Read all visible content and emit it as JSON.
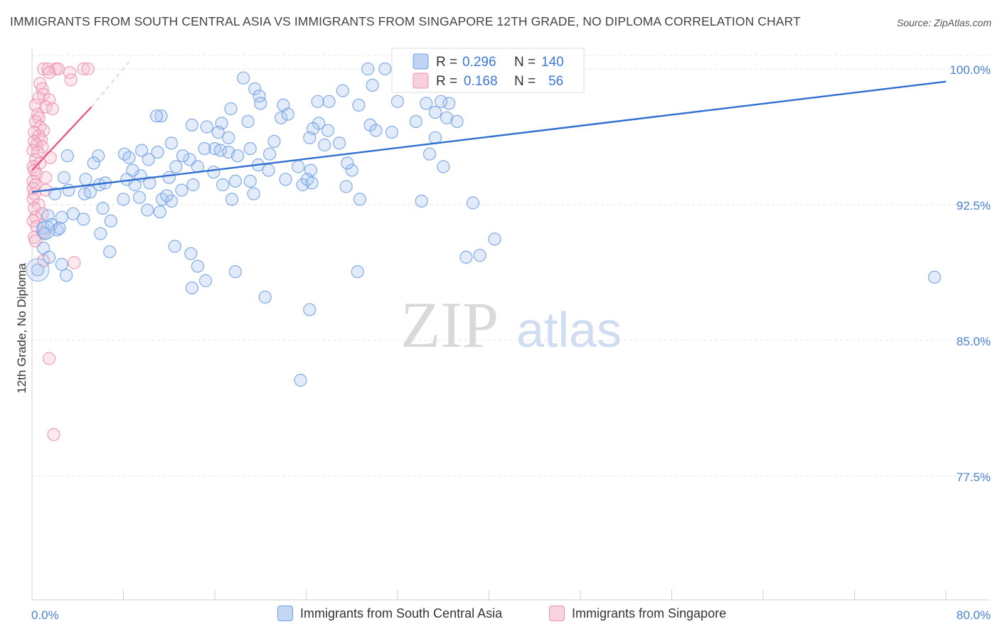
{
  "header": {
    "title": "IMMIGRANTS FROM SOUTH CENTRAL ASIA VS IMMIGRANTS FROM SINGAPORE 12TH GRADE, NO DIPLOMA CORRELATION CHART",
    "source": "Source: ZipAtlas.com"
  },
  "watermark": {
    "zip": "ZIP",
    "atlas": "atlas"
  },
  "colors": {
    "blue": "#6f9fe0",
    "blue_fill": "#a9c6f0",
    "blue_line": "#2f6fd0",
    "pink": "#ec8fae",
    "pink_fill": "#f6bfd1",
    "pink_line": "#e8598a",
    "axis_label": "#4a7fd4",
    "grid": "#e4e4e4"
  },
  "legend_top": {
    "rows": [
      {
        "r_label": "R =",
        "r_value": "0.296",
        "n_label": "N =",
        "n_value": "140",
        "series": "blue"
      },
      {
        "r_label": "R =",
        "r_value": "0.168",
        "n_label": "N =",
        "n_value": "56",
        "series": "pink"
      }
    ]
  },
  "legend_bottom": [
    {
      "label": "Immigrants from South Central Asia",
      "series": "blue"
    },
    {
      "label": "Immigrants from Singapore",
      "series": "pink"
    }
  ],
  "chart_data": {
    "type": "scatter",
    "title": "IMMIGRANTS FROM SOUTH CENTRAL ASIA VS IMMIGRANTS FROM SINGAPORE 12TH GRADE, NO DIPLOMA CORRELATION CHART",
    "xlabel": "",
    "ylabel": "12th Grade, No Diploma",
    "xlim": [
      0,
      80
    ],
    "ylim": [
      70,
      100.8
    ],
    "x_tick_labels": [
      "0.0%",
      "80.0%"
    ],
    "y_ticks": [
      77.5,
      85.0,
      92.5,
      100.0
    ],
    "y_tick_labels": [
      "77.5%",
      "85.0%",
      "92.5%",
      "100.0%"
    ],
    "grid": true,
    "legend_position": "top-center",
    "series": [
      {
        "name": "Immigrants from South Central Asia",
        "color": "blue",
        "R": 0.296,
        "N": 140,
        "trend": {
          "x": [
            0,
            80
          ],
          "y": [
            93.2,
            99.3
          ],
          "style": "solid"
        },
        "points": [
          [
            29.4,
            100.0
          ],
          [
            30.9,
            100.0
          ],
          [
            18.5,
            99.5
          ],
          [
            19.5,
            98.9
          ],
          [
            27.2,
            98.8
          ],
          [
            33.0,
            99.1
          ],
          [
            19.9,
            98.5
          ],
          [
            25.0,
            98.2
          ],
          [
            26.0,
            98.2
          ],
          [
            28.6,
            98.0
          ],
          [
            20.0,
            98.1
          ],
          [
            22.0,
            98.0
          ],
          [
            32.0,
            98.2
          ],
          [
            34.5,
            98.1
          ],
          [
            36.5,
            98.1
          ],
          [
            17.4,
            97.8
          ],
          [
            21.8,
            97.3
          ],
          [
            22.4,
            97.5
          ],
          [
            25.1,
            97.0
          ],
          [
            29.6,
            96.9
          ],
          [
            30.1,
            96.6
          ],
          [
            11.3,
            97.4
          ],
          [
            14.0,
            96.9
          ],
          [
            15.3,
            96.8
          ],
          [
            16.6,
            97.0
          ],
          [
            18.9,
            97.1
          ],
          [
            24.6,
            96.7
          ],
          [
            25.9,
            96.6
          ],
          [
            33.6,
            97.1
          ],
          [
            36.3,
            97.3
          ],
          [
            37.2,
            97.1
          ],
          [
            10.9,
            97.4
          ],
          [
            17.2,
            96.2
          ],
          [
            24.3,
            96.2
          ],
          [
            12.2,
            95.9
          ],
          [
            16.0,
            95.6
          ],
          [
            19.1,
            95.6
          ],
          [
            25.6,
            95.8
          ],
          [
            8.1,
            95.3
          ],
          [
            9.6,
            95.5
          ],
          [
            10.2,
            95.0
          ],
          [
            11.0,
            95.4
          ],
          [
            13.8,
            95.0
          ],
          [
            15.1,
            95.6
          ],
          [
            16.5,
            95.5
          ],
          [
            17.2,
            95.4
          ],
          [
            20.8,
            95.3
          ],
          [
            3.1,
            95.2
          ],
          [
            5.8,
            95.2
          ],
          [
            5.4,
            94.8
          ],
          [
            8.5,
            95.1
          ],
          [
            12.6,
            94.6
          ],
          [
            13.2,
            95.2
          ],
          [
            14.5,
            94.6
          ],
          [
            20.7,
            94.4
          ],
          [
            23.3,
            94.6
          ],
          [
            24.4,
            94.4
          ],
          [
            28.0,
            94.4
          ],
          [
            9.5,
            94.1
          ],
          [
            12.0,
            94.0
          ],
          [
            15.9,
            94.3
          ],
          [
            19.1,
            93.8
          ],
          [
            22.2,
            93.9
          ],
          [
            23.7,
            93.6
          ],
          [
            2.8,
            94.0
          ],
          [
            4.7,
            93.9
          ],
          [
            5.9,
            93.6
          ],
          [
            6.4,
            93.7
          ],
          [
            8.3,
            93.9
          ],
          [
            9.0,
            93.6
          ],
          [
            10.3,
            93.7
          ],
          [
            13.1,
            93.3
          ],
          [
            14.1,
            93.6
          ],
          [
            16.7,
            93.6
          ],
          [
            17.8,
            93.8
          ],
          [
            24.1,
            93.9
          ],
          [
            24.5,
            93.7
          ],
          [
            2.0,
            93.1
          ],
          [
            3.2,
            93.3
          ],
          [
            4.6,
            93.1
          ],
          [
            5.1,
            93.2
          ],
          [
            8.0,
            92.8
          ],
          [
            9.4,
            92.9
          ],
          [
            11.4,
            92.8
          ],
          [
            12.2,
            92.7
          ],
          [
            17.5,
            92.8
          ],
          [
            19.4,
            93.1
          ],
          [
            28.7,
            92.8
          ],
          [
            34.1,
            92.7
          ],
          [
            1.4,
            91.9
          ],
          [
            2.6,
            91.8
          ],
          [
            3.6,
            92.0
          ],
          [
            4.5,
            91.7
          ],
          [
            10.1,
            92.2
          ],
          [
            11.2,
            92.1
          ],
          [
            38.6,
            92.6
          ],
          [
            1.0,
            91.2
          ],
          [
            1.7,
            91.4
          ],
          [
            2.2,
            91.1
          ],
          [
            1.1,
            90.9
          ],
          [
            2.4,
            91.2
          ],
          [
            6.9,
            91.6
          ],
          [
            6.0,
            90.9
          ],
          [
            12.5,
            90.2
          ],
          [
            13.9,
            89.8
          ],
          [
            38.0,
            89.6
          ],
          [
            40.5,
            90.6
          ],
          [
            39.2,
            89.7
          ],
          [
            1.0,
            90.1
          ],
          [
            2.6,
            89.2
          ],
          [
            14.5,
            89.1
          ],
          [
            17.8,
            88.8
          ],
          [
            6.8,
            89.9
          ],
          [
            3.0,
            88.6
          ],
          [
            15.2,
            88.3
          ],
          [
            28.5,
            88.8
          ],
          [
            14.0,
            87.9
          ],
          [
            20.4,
            87.4
          ],
          [
            24.3,
            86.7
          ],
          [
            79.0,
            88.5
          ],
          [
            23.5,
            82.8
          ],
          [
            27.5,
            93.5
          ],
          [
            31.5,
            96.5
          ],
          [
            34.8,
            95.3
          ],
          [
            11.8,
            93.0
          ],
          [
            18.0,
            95.2
          ],
          [
            21.2,
            96.0
          ],
          [
            27.6,
            94.8
          ],
          [
            26.9,
            95.9
          ],
          [
            29.8,
            99.1
          ],
          [
            35.8,
            98.2
          ],
          [
            16.3,
            96.5
          ],
          [
            19.8,
            94.7
          ],
          [
            8.8,
            94.4
          ],
          [
            6.2,
            92.3
          ],
          [
            0.5,
            88.9
          ],
          [
            1.5,
            89.6
          ],
          [
            35.3,
            97.6
          ],
          [
            36.0,
            94.6
          ],
          [
            35.3,
            96.2
          ]
        ]
      },
      {
        "name": "Immigrants from Singapore",
        "color": "pink",
        "R": 0.168,
        "N": 56,
        "trend": {
          "x": [
            0,
            5.2
          ],
          "y": [
            94.4,
            97.9
          ],
          "style": "solid"
        },
        "trend_dashed": {
          "x": [
            5.2,
            8.5
          ],
          "y": [
            97.9,
            100.4
          ],
          "style": "dashed"
        },
        "points": [
          [
            1.0,
            100.0
          ],
          [
            1.4,
            100.0
          ],
          [
            2.1,
            100.0
          ],
          [
            2.3,
            100.0
          ],
          [
            4.5,
            100.0
          ],
          [
            4.9,
            100.0
          ],
          [
            1.5,
            99.8
          ],
          [
            3.3,
            99.8
          ],
          [
            3.4,
            99.4
          ],
          [
            0.7,
            99.2
          ],
          [
            0.9,
            98.9
          ],
          [
            1.0,
            98.6
          ],
          [
            0.6,
            98.4
          ],
          [
            1.5,
            98.3
          ],
          [
            0.3,
            98.0
          ],
          [
            1.2,
            97.9
          ],
          [
            1.8,
            97.8
          ],
          [
            0.5,
            97.5
          ],
          [
            0.6,
            97.3
          ],
          [
            0.3,
            97.1
          ],
          [
            0.7,
            96.8
          ],
          [
            1.0,
            96.6
          ],
          [
            0.2,
            96.5
          ],
          [
            0.6,
            96.3
          ],
          [
            0.8,
            96.1
          ],
          [
            0.2,
            96.0
          ],
          [
            0.4,
            95.8
          ],
          [
            0.9,
            95.7
          ],
          [
            0.1,
            95.5
          ],
          [
            0.5,
            95.4
          ],
          [
            1.6,
            95.1
          ],
          [
            0.3,
            95.0
          ],
          [
            0.7,
            94.8
          ],
          [
            0.1,
            94.6
          ],
          [
            0.2,
            94.4
          ],
          [
            0.4,
            94.2
          ],
          [
            1.2,
            94.0
          ],
          [
            0.1,
            93.8
          ],
          [
            0.3,
            93.6
          ],
          [
            0.1,
            93.4
          ],
          [
            1.2,
            93.3
          ],
          [
            0.2,
            93.1
          ],
          [
            0.1,
            92.8
          ],
          [
            0.6,
            92.5
          ],
          [
            0.2,
            92.3
          ],
          [
            0.9,
            92.0
          ],
          [
            0.3,
            91.8
          ],
          [
            0.1,
            91.6
          ],
          [
            0.4,
            91.3
          ],
          [
            1.0,
            91.0
          ],
          [
            0.2,
            90.7
          ],
          [
            0.3,
            90.5
          ],
          [
            1.0,
            89.4
          ],
          [
            3.7,
            89.3
          ],
          [
            1.5,
            84.0
          ],
          [
            1.9,
            79.8
          ]
        ]
      }
    ]
  }
}
